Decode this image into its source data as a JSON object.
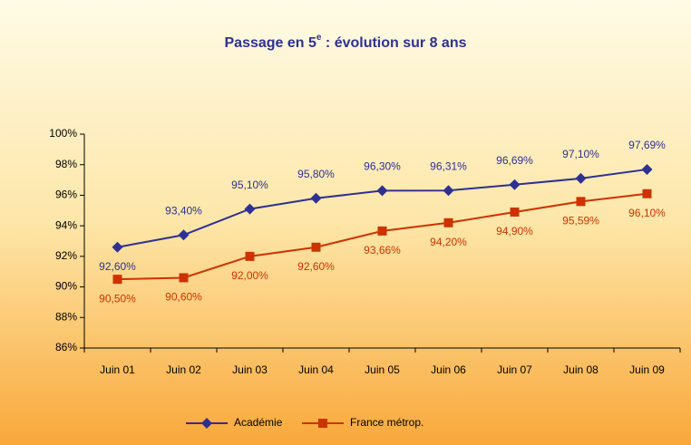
{
  "chart_data": {
    "type": "line",
    "title": [
      "Passage en 5",
      "e",
      " : évolution sur 8 ans"
    ],
    "categories": [
      "Juin 01",
      "Juin 02",
      "Juin 03",
      "Juin 04",
      "Juin 05",
      "Juin 06",
      "Juin 07",
      "Juin 08",
      "Juin 09"
    ],
    "series": [
      {
        "name": "Académie",
        "color": "#2e3192",
        "marker": "diamond",
        "values": [
          92.6,
          93.4,
          95.1,
          95.8,
          96.3,
          96.31,
          96.69,
          97.1,
          97.69
        ],
        "value_labels": [
          "92,60%",
          "93,40%",
          "95,10%",
          "95,80%",
          "96,30%",
          "96,31%",
          "96,69%",
          "97,10%",
          "97,69%"
        ]
      },
      {
        "name": "France métrop.",
        "color": "#cc3300",
        "marker": "square",
        "values": [
          90.5,
          90.6,
          92.0,
          92.6,
          93.66,
          94.2,
          94.9,
          95.59,
          96.1
        ],
        "value_labels": [
          "90,50%",
          "90,60%",
          "92,00%",
          "92,60%",
          "93,66%",
          "94,20%",
          "94,90%",
          "95,59%",
          "96,10%"
        ]
      }
    ],
    "ylim": [
      86,
      100
    ],
    "yticks": [
      {
        "value": 86,
        "label": "86%"
      },
      {
        "value": 88,
        "label": "88%"
      },
      {
        "value": 90,
        "label": "90%"
      },
      {
        "value": 92,
        "label": "92%"
      },
      {
        "value": 94,
        "label": "94%"
      },
      {
        "value": 96,
        "label": "96%"
      },
      {
        "value": 98,
        "label": "98%"
      },
      {
        "value": 100,
        "label": "100%"
      }
    ],
    "legend": "bottom"
  }
}
